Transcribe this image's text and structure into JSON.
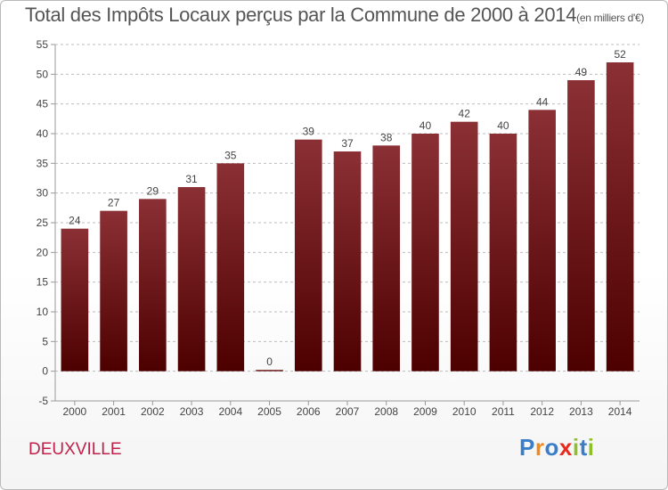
{
  "title": "Total des Impôts Locaux perçus par la Commune de 2000 à 2014",
  "unit": "(en milliers d'€)",
  "commune": "DEUXVILLE",
  "logo": {
    "text": "Proxiti",
    "letters": [
      {
        "ch": "P",
        "color": "#3a7dc9"
      },
      {
        "ch": "r",
        "color": "#f08a1c"
      },
      {
        "ch": "o",
        "color": "#3a7dc9"
      },
      {
        "ch": "x",
        "color": "#e8291c"
      },
      {
        "ch": "i",
        "color": "#8fbf2a"
      },
      {
        "ch": "t",
        "color": "#3a7dc9"
      },
      {
        "ch": "i",
        "color": "#8fbf2a"
      }
    ]
  },
  "colors": {
    "bar_top": "#8b3035",
    "bar_bottom": "#4d0000",
    "grid": "#bdbdbd",
    "text": "#444444"
  },
  "chart_data": {
    "type": "bar",
    "categories": [
      "2000",
      "2001",
      "2002",
      "2003",
      "2004",
      "2005",
      "2006",
      "2007",
      "2008",
      "2009",
      "2010",
      "2011",
      "2012",
      "2013",
      "2014"
    ],
    "values": [
      24,
      27,
      29,
      31,
      35,
      0,
      39,
      37,
      38,
      40,
      42,
      40,
      44,
      49,
      52
    ],
    "ylim": [
      -5,
      55
    ],
    "yticks": [
      -5,
      0,
      5,
      10,
      15,
      20,
      25,
      30,
      35,
      40,
      45,
      50,
      55
    ],
    "grid": "horizontal dashed"
  }
}
